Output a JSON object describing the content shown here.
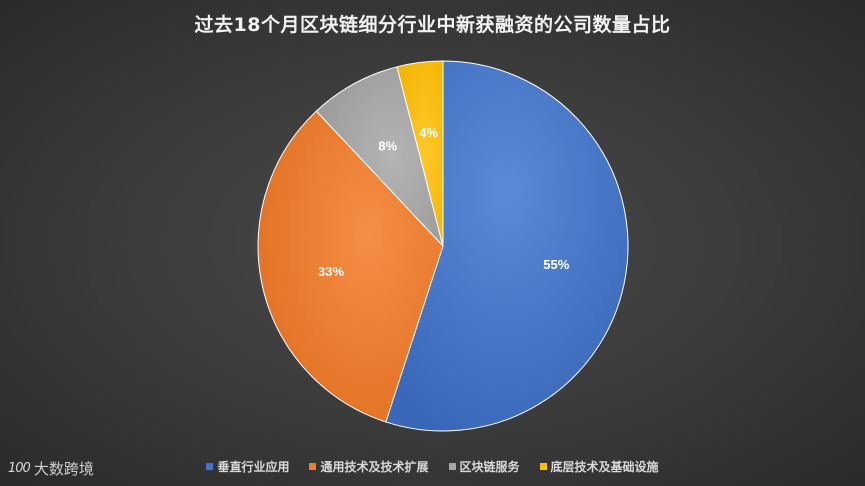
{
  "watermark": {
    "logo": "100",
    "text": "大数跨境"
  },
  "chart_data": {
    "type": "pie",
    "title": "过去18个月区块链细分行业中新获融资的公司数量占比",
    "slices": [
      {
        "label": "垂直行业应用",
        "value": 55,
        "value_label": "55%",
        "color": "#4472c4"
      },
      {
        "label": "通用技术及技术扩展",
        "value": 33,
        "value_label": "33%",
        "color": "#ed7d31"
      },
      {
        "label": "区块链服务",
        "value": 8,
        "value_label": "8%",
        "color": "#a5a5a5"
      },
      {
        "label": "底层技术及基础设施",
        "value": 4,
        "value_label": "4%",
        "color": "#ffc000"
      }
    ],
    "legend_position": "bottom",
    "start_angle_deg": 0,
    "direction": "clockwise"
  }
}
